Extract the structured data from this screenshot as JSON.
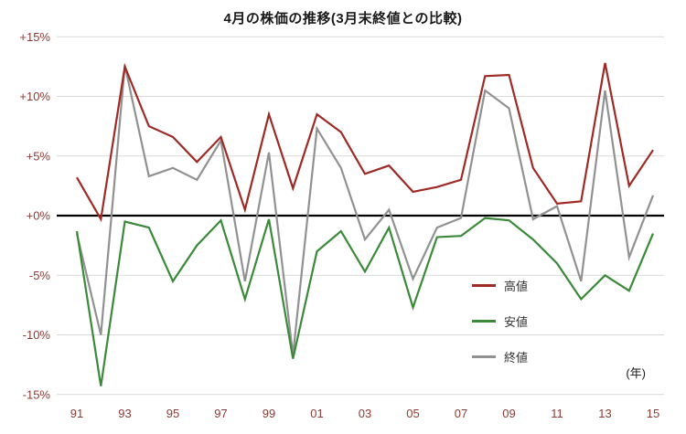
{
  "chart_data": {
    "type": "line",
    "title": "4月の株価の推移(3月末終値との比較)",
    "x_axis_unit": "(年)",
    "xlabel": "",
    "ylabel": "",
    "ylim": [
      -15,
      15
    ],
    "grid": true,
    "zero_line": true,
    "legend_position": "right-middle",
    "axis_label_color": "#8c3a33",
    "grid_color": "#d9d9d9",
    "zero_line_color": "#000000",
    "categories": [
      "91",
      "92",
      "93",
      "94",
      "95",
      "96",
      "97",
      "98",
      "99",
      "00",
      "01",
      "02",
      "03",
      "04",
      "05",
      "06",
      "07",
      "08",
      "09",
      "10",
      "11",
      "12",
      "13",
      "14",
      "15"
    ],
    "x_tick_labels": [
      "91",
      "93",
      "95",
      "97",
      "99",
      "01",
      "03",
      "05",
      "07",
      "09",
      "11",
      "13",
      "15"
    ],
    "y_ticks": [
      {
        "value": 15,
        "label": "+15%"
      },
      {
        "value": 10,
        "label": "+10%"
      },
      {
        "value": 5,
        "label": "+5%"
      },
      {
        "value": 0,
        "label": "+0%"
      },
      {
        "value": -5,
        "label": "-5%"
      },
      {
        "value": -10,
        "label": "-10%"
      },
      {
        "value": -15,
        "label": "-15%"
      }
    ],
    "series": [
      {
        "key": "high",
        "name": "高値",
        "color": "#9e2a25",
        "values": [
          3.2,
          -0.3,
          12.5,
          7.5,
          6.6,
          4.5,
          6.6,
          0.5,
          8.5,
          2.3,
          8.5,
          7.0,
          3.5,
          4.2,
          2.0,
          2.4,
          3.0,
          11.7,
          11.8,
          4.0,
          1.0,
          1.2,
          12.8,
          2.5,
          5.5
        ]
      },
      {
        "key": "low",
        "name": "安値",
        "color": "#3a8a3a",
        "values": [
          -1.3,
          -14.3,
          -0.5,
          -1.0,
          -5.5,
          -2.5,
          -0.4,
          -7.0,
          -0.3,
          -12.0,
          -3.0,
          -1.3,
          -4.7,
          -1.0,
          -7.7,
          -1.8,
          -1.7,
          -0.2,
          -0.4,
          -2.0,
          -4.0,
          -7.0,
          -5.0,
          -6.3,
          -1.5
        ]
      },
      {
        "key": "close",
        "name": "終値",
        "color": "#919191",
        "values": [
          -1.5,
          -10.0,
          12.6,
          3.3,
          4.0,
          3.0,
          6.3,
          -5.5,
          5.3,
          -11.7,
          7.3,
          4.0,
          -2.0,
          0.5,
          -5.3,
          -1.0,
          -0.2,
          10.5,
          9.0,
          -0.3,
          0.8,
          -5.5,
          10.5,
          -3.5,
          1.7
        ]
      }
    ]
  }
}
